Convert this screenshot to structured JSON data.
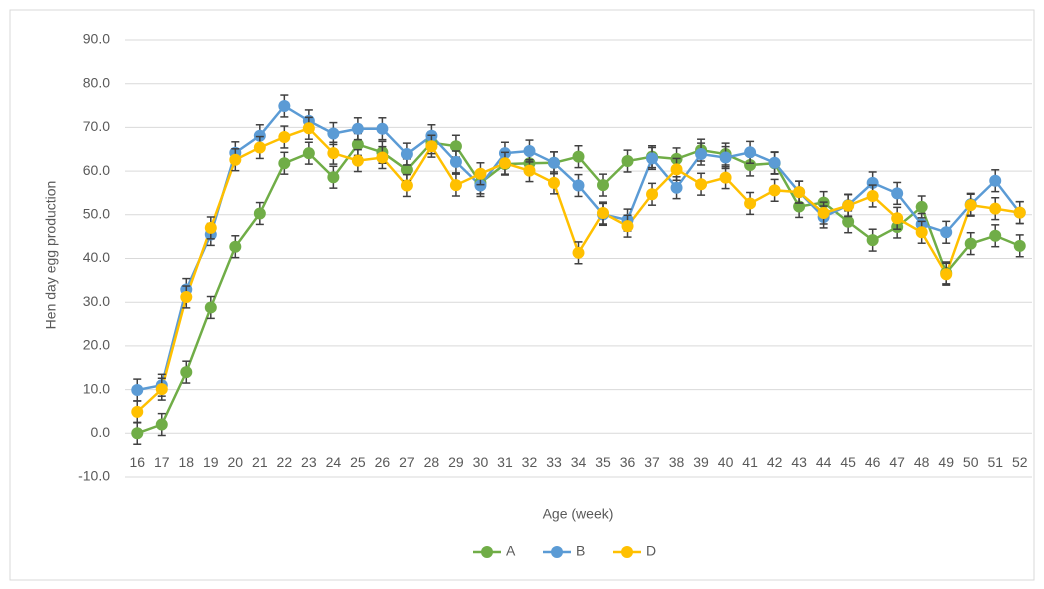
{
  "chart_data": {
    "type": "line",
    "x_label": "Age (week)",
    "y_label": "Hen day egg production",
    "categories": [
      "16",
      "17",
      "18",
      "19",
      "20",
      "21",
      "22",
      "23",
      "24",
      "25",
      "26",
      "27",
      "28",
      "29",
      "30",
      "31",
      "32",
      "33",
      "34",
      "35",
      "36",
      "37",
      "38",
      "39",
      "40",
      "41",
      "42",
      "43",
      "44",
      "45",
      "46",
      "47",
      "48",
      "49",
      "50",
      "51",
      "52"
    ],
    "ylim": [
      -10,
      90
    ],
    "yticks": [
      {
        "value": -10,
        "label": "-10.0"
      },
      {
        "value": 0,
        "label": "0.0"
      },
      {
        "value": 10,
        "label": "10.0"
      },
      {
        "value": 20,
        "label": "20.0"
      },
      {
        "value": 30,
        "label": "30.0"
      },
      {
        "value": 40,
        "label": "40.0"
      },
      {
        "value": 50,
        "label": "50.0"
      },
      {
        "value": 60,
        "label": "60.0"
      },
      {
        "value": 70,
        "label": "70.0"
      },
      {
        "value": 80,
        "label": "80.0"
      },
      {
        "value": 90,
        "label": "90.0"
      }
    ],
    "grid": true,
    "legend": "bottom",
    "series": [
      {
        "name": "A",
        "color": "#70ad47",
        "error": 2.5,
        "values": [
          0,
          2,
          14,
          28.8,
          42.7,
          50.3,
          61.8,
          64.1,
          58.6,
          66.1,
          64.3,
          60.3,
          66.5,
          65.7,
          57.3,
          61.6,
          61.8,
          61.9,
          63.3,
          56.8,
          62.3,
          63.3,
          62.8,
          64.8,
          63.9,
          61.4,
          61.8,
          51.9,
          52.8,
          48.4,
          44.2,
          47.2,
          51.8,
          36.7,
          43.4,
          45.2,
          42.9
        ]
      },
      {
        "name": "B",
        "color": "#5b9bd5",
        "error": 2.5,
        "values": [
          9.9,
          11,
          32.9,
          45.5,
          64.2,
          68.1,
          74.9,
          71.5,
          68.6,
          69.7,
          69.7,
          63.9,
          68.1,
          62.1,
          56.7,
          64.1,
          64.6,
          61.9,
          56.7,
          50.1,
          48.8,
          62.9,
          56.2,
          63.9,
          63.1,
          64.3,
          61.9,
          55.2,
          49.5,
          52.2,
          57.3,
          54.9,
          47.8,
          46,
          52.4,
          57.8,
          50.5
        ]
      },
      {
        "name": "D",
        "color": "#ffc000",
        "error": 2.5,
        "values": [
          4.9,
          10.1,
          31.2,
          47,
          62.6,
          65.4,
          67.8,
          69.8,
          64.1,
          62.4,
          63.1,
          56.7,
          65.7,
          56.8,
          59.4,
          61.8,
          60.1,
          57.3,
          41.3,
          50.4,
          47.4,
          54.7,
          60.4,
          57,
          58.5,
          52.6,
          55.6,
          55.2,
          50.4,
          52.1,
          54.3,
          49.2,
          46,
          36.4,
          52.2,
          51.4,
          50.5
        ]
      }
    ]
  }
}
